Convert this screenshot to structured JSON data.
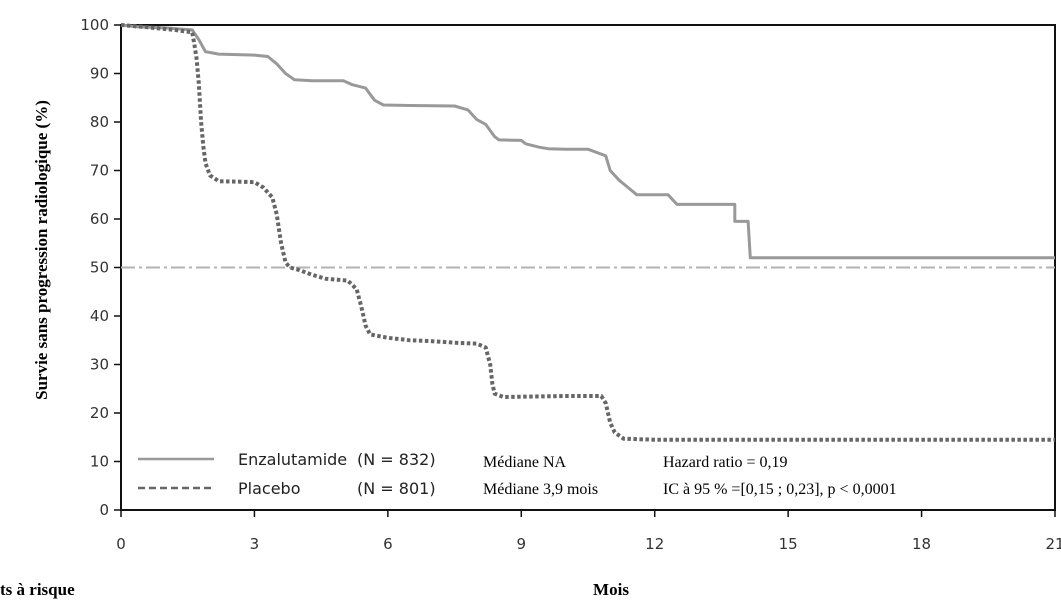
{
  "chart_data": {
    "type": "line",
    "ylabel": "Survie sans progression radiologique (%)",
    "xlabel": "Mois",
    "risk_label": "ts à risque",
    "xlim": [
      0,
      21
    ],
    "ylim": [
      0,
      100
    ],
    "xticks": [
      0,
      3,
      6,
      9,
      12,
      15,
      18,
      21
    ],
    "yticks": [
      0,
      10,
      20,
      30,
      40,
      50,
      60,
      70,
      80,
      90,
      100
    ],
    "grid": false,
    "legend_position": "bottom-left",
    "reference_line": {
      "y": 50,
      "color": "#b3b3b3"
    },
    "series": [
      {
        "name": "Enzalutamide",
        "n_label": "(N = 832)",
        "median": "Médiane NA",
        "color": "#999999",
        "style": "solid",
        "points": [
          [
            0,
            100
          ],
          [
            0.4,
            99.6
          ],
          [
            1,
            99.4
          ],
          [
            1.6,
            99
          ],
          [
            1.75,
            97
          ],
          [
            1.9,
            94.5
          ],
          [
            2.2,
            94
          ],
          [
            3,
            93.8
          ],
          [
            3.3,
            93.5
          ],
          [
            3.5,
            92
          ],
          [
            3.7,
            90
          ],
          [
            3.9,
            88.7
          ],
          [
            4.3,
            88.5
          ],
          [
            5,
            88.5
          ],
          [
            5.2,
            87.7
          ],
          [
            5.5,
            87
          ],
          [
            5.7,
            84.5
          ],
          [
            5.9,
            83.5
          ],
          [
            6.5,
            83.4
          ],
          [
            7.5,
            83.3
          ],
          [
            7.8,
            82.5
          ],
          [
            8,
            80.5
          ],
          [
            8.2,
            79.5
          ],
          [
            8.4,
            77
          ],
          [
            8.5,
            76.3
          ],
          [
            9,
            76.2
          ],
          [
            9.1,
            75.5
          ],
          [
            9.4,
            74.8
          ],
          [
            9.6,
            74.5
          ],
          [
            10,
            74.4
          ],
          [
            10.5,
            74.4
          ],
          [
            10.9,
            73
          ],
          [
            11,
            70
          ],
          [
            11.2,
            68
          ],
          [
            11.4,
            66.5
          ],
          [
            11.6,
            65
          ],
          [
            12.3,
            65
          ],
          [
            12.5,
            63
          ],
          [
            13.8,
            63
          ],
          [
            13.8,
            59.5
          ],
          [
            14.1,
            59.5
          ],
          [
            14.15,
            52
          ],
          [
            21,
            52
          ]
        ]
      },
      {
        "name": "Placebo",
        "n_label": "(N = 801)",
        "median": "Médiane 3,9 mois",
        "color": "#666666",
        "style": "dotted",
        "points": [
          [
            0,
            100
          ],
          [
            0.5,
            99.6
          ],
          [
            1.2,
            99
          ],
          [
            1.6,
            98.5
          ],
          [
            1.65,
            96
          ],
          [
            1.7,
            93
          ],
          [
            1.75,
            88
          ],
          [
            1.8,
            80
          ],
          [
            1.85,
            75
          ],
          [
            1.9,
            71.5
          ],
          [
            2,
            69
          ],
          [
            2.2,
            67.8
          ],
          [
            3,
            67.6
          ],
          [
            3.2,
            66.5
          ],
          [
            3.4,
            64.5
          ],
          [
            3.5,
            61
          ],
          [
            3.6,
            55
          ],
          [
            3.7,
            51
          ],
          [
            3.8,
            50
          ],
          [
            4,
            49.5
          ],
          [
            4.3,
            48.5
          ],
          [
            4.6,
            47.7
          ],
          [
            5.1,
            47.3
          ],
          [
            5.3,
            45.5
          ],
          [
            5.4,
            42
          ],
          [
            5.5,
            38
          ],
          [
            5.6,
            36.2
          ],
          [
            6,
            35.5
          ],
          [
            6.5,
            35
          ],
          [
            7,
            34.8
          ],
          [
            7.5,
            34.5
          ],
          [
            8,
            34.3
          ],
          [
            8.2,
            33.5
          ],
          [
            8.3,
            30
          ],
          [
            8.35,
            26
          ],
          [
            8.4,
            24
          ],
          [
            8.6,
            23.3
          ],
          [
            10,
            23.5
          ],
          [
            10.8,
            23.5
          ],
          [
            10.9,
            22
          ],
          [
            11,
            18
          ],
          [
            11.1,
            16
          ],
          [
            11.3,
            14.7
          ],
          [
            12,
            14.5
          ],
          [
            21,
            14.5
          ]
        ]
      }
    ],
    "annotations": {
      "hazard_ratio": "Hazard ratio = 0,19",
      "ci": "IC à 95 % =[0,15 ; 0,23], p < 0,0001"
    }
  }
}
